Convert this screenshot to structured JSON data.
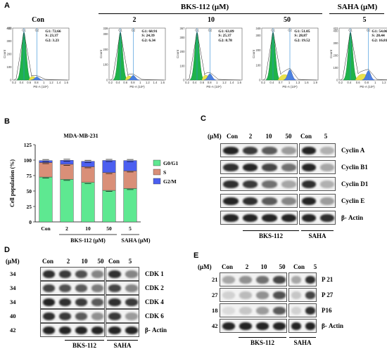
{
  "panel_labels": {
    "a": "A",
    "b": "B",
    "c": "C",
    "d": "D",
    "e": "E"
  },
  "panel_a": {
    "group_header_bks": "BKS-112 (μM)",
    "group_header_saha": "SAHA (μM)",
    "histograms": [
      {
        "title": "Con",
        "ymax": "400",
        "yticks": [
          "0",
          "100",
          "200",
          "300",
          "400"
        ],
        "xticks": [
          "0.2",
          "0.4",
          "0.6",
          "0.8",
          "1",
          "1.2",
          "1.4",
          "1.6"
        ],
        "g1": "G1: 72.66",
        "s": "S: 23.37",
        "g2": "G2: 3.23"
      },
      {
        "title": "2",
        "ymax": "339",
        "yticks": [
          "0",
          "100",
          "200",
          "300"
        ],
        "xticks": [
          "0.2",
          "0.4",
          "0.6",
          "0.8",
          "1",
          "1.2",
          "1.4",
          "1.6"
        ],
        "g1": "G1: 68.91",
        "s": "S: 24.39",
        "g2": "G2: 6.34"
      },
      {
        "title": "10",
        "ymax": "367",
        "yticks": [
          "0",
          "100",
          "200",
          "300"
        ],
        "xticks": [
          "0.2",
          "0.4",
          "0.6",
          "0.8",
          "1",
          "1.2",
          "1.4",
          "1.6"
        ],
        "g1": "G1: 63.89",
        "s": "S: 25.37",
        "g2": "G2: 8.78"
      },
      {
        "title": "50",
        "ymax": "349",
        "yticks": [
          "0",
          "100",
          "200",
          "300"
        ],
        "xticks": [
          "0.2",
          "0.4",
          "0.7",
          "1",
          "1.3",
          "1.6",
          "1.9"
        ],
        "g1": "G1: 51.05",
        "s": "S: 28.87",
        "g2": "G2: 19.52"
      },
      {
        "title": "5",
        "ymax": "422",
        "yticks": [
          "0",
          "100",
          "200",
          "300",
          "400"
        ],
        "xticks": [
          "0.2",
          "0.4",
          "0.6",
          "0.8",
          "1",
          "1.2",
          "1.4"
        ],
        "g1": "G1: 54.06",
        "s": "S: 28.44",
        "g2": "G2: 16.81"
      }
    ],
    "xaxis_label": "PE-A (10⁶)",
    "yaxis_label": "Count",
    "gate_g1": "G1",
    "gate_g2": "G2"
  },
  "chart_data": {
    "type": "bar",
    "stacked": true,
    "title": "MDA-MB-231",
    "ylabel": "Cell population (%)",
    "ylim": [
      0,
      125
    ],
    "yticks": [
      "0",
      "25",
      "50",
      "75",
      "100",
      "125"
    ],
    "categories": [
      "Con",
      "2",
      "10",
      "50",
      "5"
    ],
    "group_labels": [
      "BKS-112 (μM)",
      "SAHA (μM)"
    ],
    "series": [
      {
        "name": "G0/G1",
        "color": "#5ee891",
        "values": [
          72.66,
          68.91,
          63.89,
          51.05,
          54.06
        ]
      },
      {
        "name": "S",
        "color": "#d98f78",
        "values": [
          23.37,
          24.39,
          25.37,
          28.87,
          28.44
        ]
      },
      {
        "name": "G2/M",
        "color": "#4b5ff0",
        "values": [
          3.23,
          6.34,
          8.78,
          19.52,
          16.81
        ]
      }
    ],
    "legend_position": "top-right"
  },
  "panel_c": {
    "unit": "(μM)",
    "lanes": [
      "Con",
      "2",
      "10",
      "50",
      "Con",
      "5"
    ],
    "proteins": [
      "Cyclin A",
      "Cyclin B1",
      "Cyclin D1",
      "Cyclin E",
      "β- Actin"
    ],
    "group1": "BKS-112",
    "group2": "SAHA"
  },
  "panel_d": {
    "unit": "(μM)",
    "lanes": [
      "Con",
      "2",
      "10",
      "50",
      "Con",
      "5"
    ],
    "mw": [
      "34",
      "34",
      "34",
      "40",
      "42"
    ],
    "proteins": [
      "CDK 1",
      "CDK 2",
      "CDK 4",
      "CDK 6",
      "β- Actin"
    ],
    "group1": "BKS-112",
    "group2": "SAHA"
  },
  "panel_e": {
    "unit": "(μM)",
    "lanes": [
      "Con",
      "2",
      "10",
      "50",
      "Con",
      "5"
    ],
    "mw": [
      "21",
      "27",
      "18",
      "42"
    ],
    "proteins": [
      "P 21",
      "P 27",
      "P16",
      "β- Actin"
    ],
    "group1": "BKS-112",
    "group2": "SAHA"
  }
}
